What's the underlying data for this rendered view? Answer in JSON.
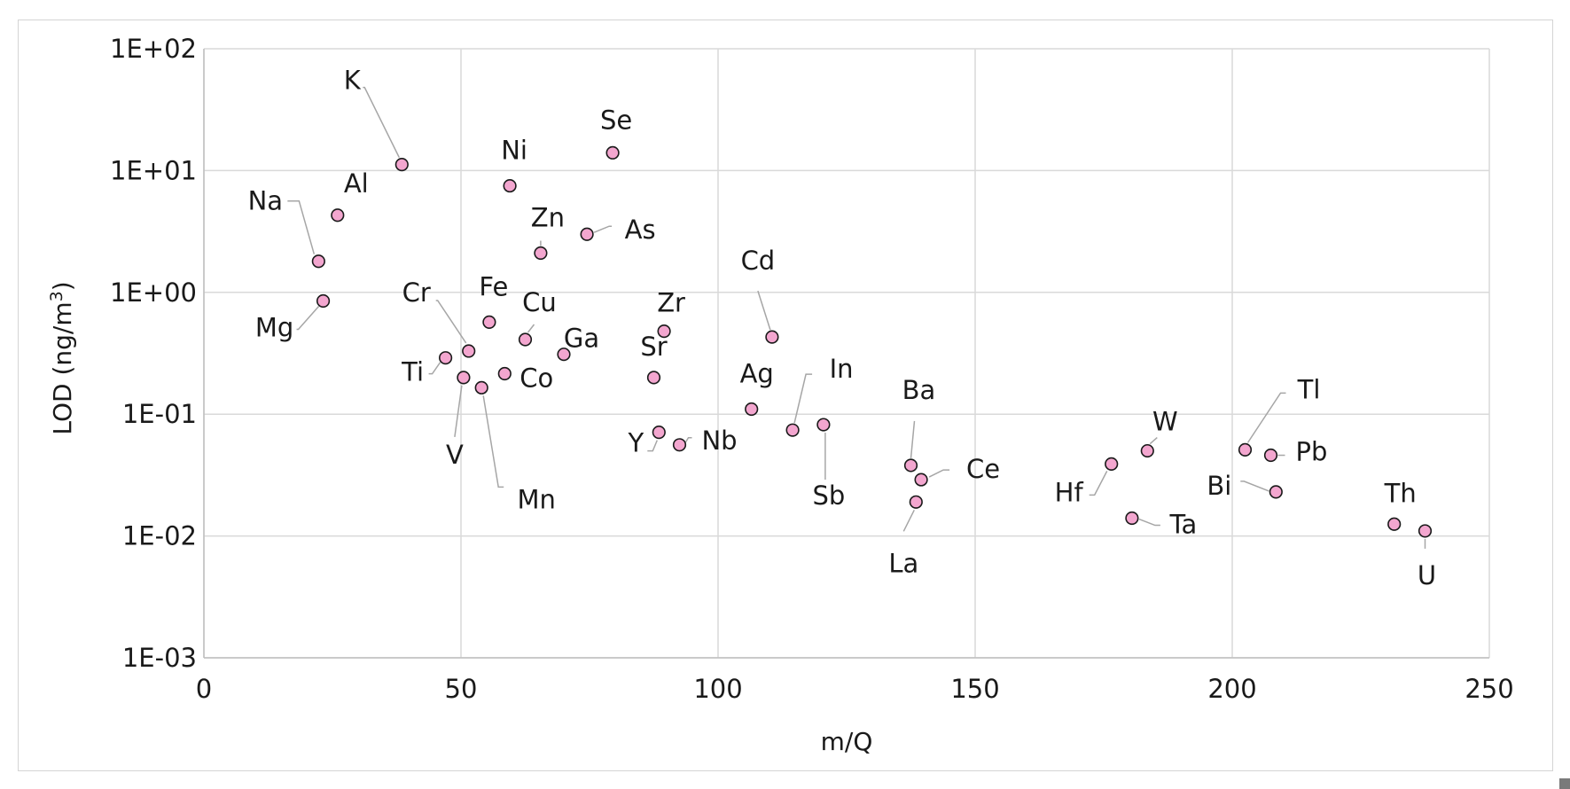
{
  "chart_data": {
    "type": "scatter",
    "xlabel": "m/Q",
    "ylabel_main": "LOD (ng/m",
    "ylabel_sup": "3",
    "ylabel_end": ")",
    "xlim": [
      0,
      250
    ],
    "ylim": [
      0.001,
      100
    ],
    "y_scale": "log",
    "x_ticks": [
      "0",
      "50",
      "100",
      "150",
      "200",
      "250"
    ],
    "y_ticks": [
      "1E-03",
      "1E-02",
      "1E-01",
      "1E+00",
      "1E+01",
      "1E+02"
    ],
    "grid": true,
    "marker_color": "#f3a6cf",
    "points": [
      {
        "label": "Na",
        "x": 22.3,
        "y": 1.8
      },
      {
        "label": "Mg",
        "x": 23.2,
        "y": 0.85
      },
      {
        "label": "Al",
        "x": 26.0,
        "y": 4.3
      },
      {
        "label": "K",
        "x": 38.5,
        "y": 11.2
      },
      {
        "label": "Ti",
        "x": 47.0,
        "y": 0.29
      },
      {
        "label": "V",
        "x": 50.5,
        "y": 0.2
      },
      {
        "label": "Cr",
        "x": 51.5,
        "y": 0.33
      },
      {
        "label": "Mn",
        "x": 54.0,
        "y": 0.165
      },
      {
        "label": "Fe",
        "x": 55.5,
        "y": 0.57
      },
      {
        "label": "Co",
        "x": 58.5,
        "y": 0.215
      },
      {
        "label": "Ni",
        "x": 59.5,
        "y": 7.5
      },
      {
        "label": "Cu",
        "x": 62.5,
        "y": 0.41
      },
      {
        "label": "Zn",
        "x": 65.5,
        "y": 2.1
      },
      {
        "label": "Ga",
        "x": 70.0,
        "y": 0.31
      },
      {
        "label": "As",
        "x": 74.5,
        "y": 3.0
      },
      {
        "label": "Se",
        "x": 79.5,
        "y": 14.0
      },
      {
        "label": "Sr",
        "x": 87.5,
        "y": 0.2
      },
      {
        "label": "Y",
        "x": 88.5,
        "y": 0.071
      },
      {
        "label": "Zr",
        "x": 89.5,
        "y": 0.48
      },
      {
        "label": "Nb",
        "x": 92.5,
        "y": 0.056
      },
      {
        "label": "Ag",
        "x": 106.5,
        "y": 0.11
      },
      {
        "label": "Cd",
        "x": 110.5,
        "y": 0.43
      },
      {
        "label": "In",
        "x": 114.5,
        "y": 0.074
      },
      {
        "label": "Sb",
        "x": 120.5,
        "y": 0.082
      },
      {
        "label": "Ba",
        "x": 137.5,
        "y": 0.038
      },
      {
        "label": "La",
        "x": 138.5,
        "y": 0.019
      },
      {
        "label": "Ce",
        "x": 139.5,
        "y": 0.029
      },
      {
        "label": "Hf",
        "x": 176.5,
        "y": 0.039
      },
      {
        "label": "Ta",
        "x": 180.5,
        "y": 0.014
      },
      {
        "label": "W",
        "x": 183.5,
        "y": 0.05
      },
      {
        "label": "Tl",
        "x": 202.5,
        "y": 0.051
      },
      {
        "label": "Pb",
        "x": 207.5,
        "y": 0.046
      },
      {
        "label": "Bi",
        "x": 208.5,
        "y": 0.023
      },
      {
        "label": "Th",
        "x": 231.5,
        "y": 0.0125
      },
      {
        "label": "U",
        "x": 237.5,
        "y": 0.011
      }
    ]
  }
}
